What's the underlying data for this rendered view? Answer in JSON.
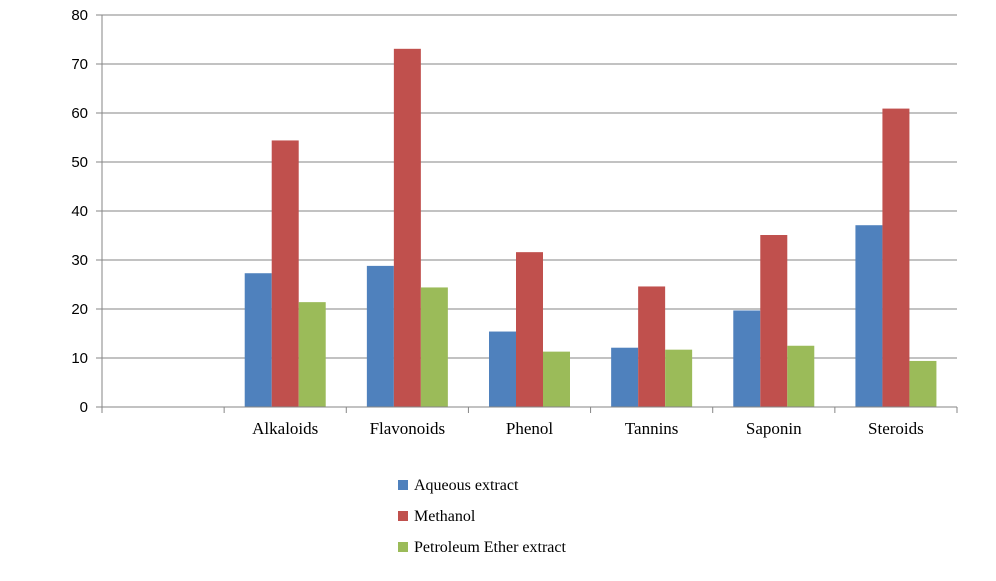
{
  "chart_data": {
    "type": "bar",
    "categories": [
      "",
      "Alkaloids",
      "Flavonoids",
      "Phenol",
      "Tannins",
      "Saponin",
      "Steroids"
    ],
    "series": [
      {
        "name": "Aqueous extract",
        "color": "#4F81BD",
        "values": [
          null,
          27.3,
          28.8,
          15.4,
          12.1,
          19.7,
          37.1
        ]
      },
      {
        "name": "Methanol",
        "color": "#C0504D",
        "values": [
          null,
          54.4,
          73.1,
          31.6,
          24.6,
          35.1,
          60.9
        ]
      },
      {
        "name": "Petroleum Ether extract",
        "color": "#9BBB59",
        "values": [
          null,
          21.4,
          24.4,
          11.3,
          11.7,
          12.5,
          9.4
        ]
      }
    ],
    "yticks": [
      "0",
      "10",
      "20",
      "30",
      "40",
      "50",
      "60",
      "70",
      "80"
    ],
    "ylim": [
      0,
      80
    ],
    "grid": true,
    "legend_position": "bottom-center"
  }
}
